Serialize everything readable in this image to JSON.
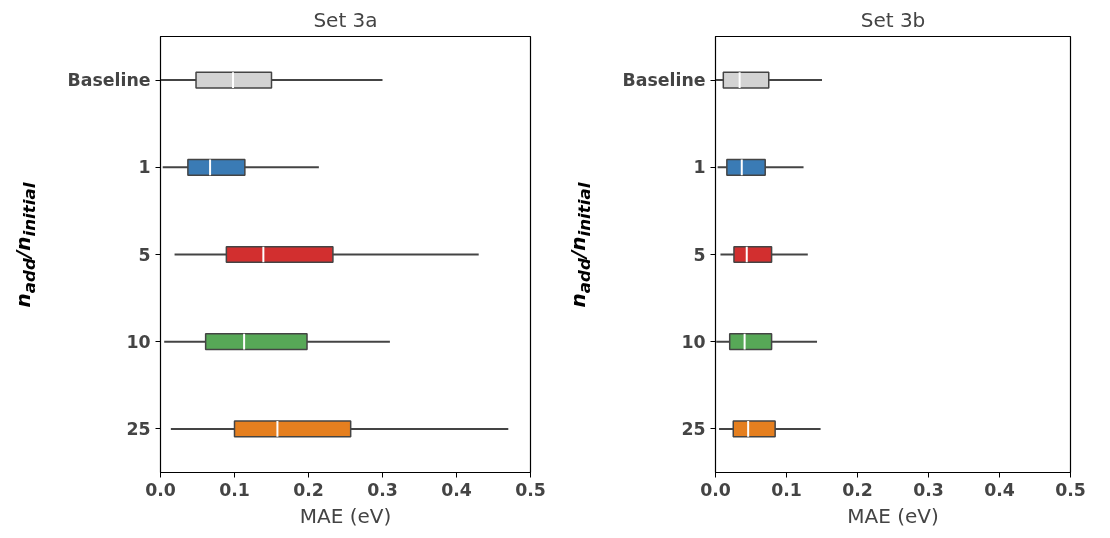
{
  "chart_data": [
    {
      "type": "box",
      "orientation": "horizontal",
      "title": "Set 3a",
      "xlabel": "MAE (eV)",
      "ylabel": "n$_{add}$/n$_{initial}$",
      "categories": [
        "Baseline",
        "1",
        "5",
        "10",
        "25"
      ],
      "colors": [
        "#d3d3d3",
        "#3a7bb5",
        "#d22f2f",
        "#57a857",
        "#e57f1f"
      ],
      "xlim": [
        0,
        0.5
      ],
      "xticks": [
        {
          "value": 0,
          "label": "0.0"
        },
        0.1,
        0.2,
        0.3,
        0.4,
        0.5
      ],
      "grid": false,
      "boxes": [
        {
          "low": 0.0,
          "q1": 0.048,
          "median": 0.098,
          "q3": 0.15,
          "high": 0.3
        },
        {
          "low": 0.003,
          "q1": 0.037,
          "median": 0.067,
          "q3": 0.114,
          "high": 0.214
        },
        {
          "low": 0.019,
          "q1": 0.089,
          "median": 0.139,
          "q3": 0.233,
          "high": 0.43
        },
        {
          "low": 0.005,
          "q1": 0.061,
          "median": 0.113,
          "q3": 0.198,
          "high": 0.31
        },
        {
          "low": 0.014,
          "q1": 0.1,
          "median": 0.158,
          "q3": 0.257,
          "high": 0.47
        }
      ]
    },
    {
      "type": "box",
      "orientation": "horizontal",
      "title": "Set 3b",
      "xlabel": "MAE (eV)",
      "ylabel": "n$_{add}$/n$_{initial}$",
      "categories": [
        "Baseline",
        "1",
        "5",
        "10",
        "25"
      ],
      "colors": [
        "#d3d3d3",
        "#3a7bb5",
        "#d22f2f",
        "#57a857",
        "#e57f1f"
      ],
      "xlim": [
        0,
        0.5
      ],
      "xticks": [
        {
          "value": 0,
          "label": "0.0"
        },
        0.1,
        0.2,
        0.3,
        0.4,
        0.5
      ],
      "grid": false,
      "boxes": [
        {
          "low": 0.0,
          "q1": 0.011,
          "median": 0.034,
          "q3": 0.075,
          "high": 0.15
        },
        {
          "low": 0.003,
          "q1": 0.016,
          "median": 0.037,
          "q3": 0.07,
          "high": 0.124
        },
        {
          "low": 0.007,
          "q1": 0.026,
          "median": 0.044,
          "q3": 0.079,
          "high": 0.13
        },
        {
          "low": 0.001,
          "q1": 0.02,
          "median": 0.041,
          "q3": 0.079,
          "high": 0.143
        },
        {
          "low": 0.005,
          "q1": 0.025,
          "median": 0.046,
          "q3": 0.084,
          "high": 0.148
        }
      ]
    }
  ]
}
